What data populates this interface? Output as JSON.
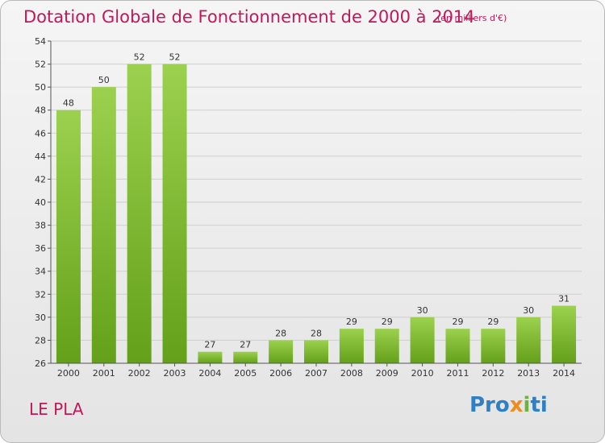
{
  "header": {
    "title": "Dotation Globale de Fonctionnement de 2000 à 2014",
    "unit": "(en milliers d'€)"
  },
  "footer": {
    "commune": "LE PLA",
    "logo": [
      "Pro",
      "x",
      "i",
      "ti"
    ]
  },
  "colors": {
    "bar_top": "#9bd14e",
    "bar_bottom": "#64a01a",
    "title": "#c2185b",
    "grid": "#cfcfcf"
  },
  "chart_data": {
    "type": "bar",
    "categories": [
      "2000",
      "2001",
      "2002",
      "2003",
      "2004",
      "2005",
      "2006",
      "2007",
      "2008",
      "2009",
      "2010",
      "2011",
      "2012",
      "2013",
      "2014"
    ],
    "values": [
      48,
      50,
      52,
      52,
      27,
      27,
      28,
      28,
      29,
      29,
      30,
      29,
      29,
      30,
      31
    ],
    "data_labels": [
      "48",
      "50",
      "52",
      "52",
      "27",
      "27",
      "28",
      "28",
      "29",
      "29",
      "30",
      "29",
      "29",
      "30",
      "31"
    ],
    "yticks": [
      "26",
      "28",
      "30",
      "32",
      "34",
      "36",
      "38",
      "40",
      "42",
      "44",
      "46",
      "48",
      "50",
      "52",
      "54"
    ],
    "ylim": [
      26,
      54
    ],
    "grid": true,
    "title": "Dotation Globale de Fonctionnement de 2000 à 2014",
    "unit": "(en milliers d'€)"
  }
}
